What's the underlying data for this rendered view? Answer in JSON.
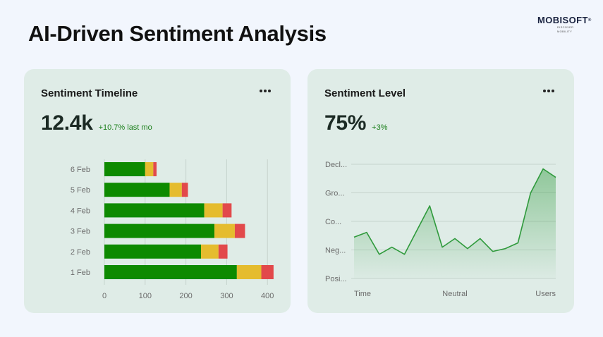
{
  "header": {
    "title": "AI-Driven Sentiment Analysis"
  },
  "logo": {
    "word": "MOBISOFT",
    "tagline": "DISCOVER MOBILITY",
    "reg": "®"
  },
  "colors": {
    "positive": "#0d8a00",
    "neutral": "#e5bc2e",
    "negative": "#e2494b",
    "line": "#2f9a3c",
    "card_bg": "#dfece7",
    "page_bg": "#f2f6fd"
  },
  "icons": {
    "more": "more-horizontal-icon"
  },
  "left_card": {
    "title": "Sentiment Timeline",
    "value": "12.4k",
    "change": "+10.7% last mo"
  },
  "right_card": {
    "title": "Sentiment Level",
    "value": "75%",
    "change": "+3%"
  },
  "chart_data": [
    {
      "type": "bar",
      "orientation": "horizontal",
      "stacked": true,
      "categories": [
        "6 Feb",
        "5 Feb",
        "4 Feb",
        "3 Feb",
        "2 Feb",
        "1 Feb"
      ],
      "series": [
        {
          "values": [
            100,
            160,
            245,
            270,
            237,
            325
          ],
          "color": "#0d8a00"
        },
        {
          "values": [
            20,
            30,
            45,
            50,
            43,
            60
          ],
          "color": "#e5bc2e"
        },
        {
          "values": [
            8,
            15,
            22,
            25,
            22,
            30
          ],
          "color": "#e2494b"
        }
      ],
      "x_ticks": [
        0,
        100,
        200,
        300,
        400
      ],
      "xlim": [
        -10,
        415
      ],
      "grid": "vertical"
    },
    {
      "type": "area",
      "y_categories": [
        "Decl...",
        "Gro...",
        "Co...",
        "Neg...",
        "Posi..."
      ],
      "x_labels": [
        "Time",
        "Neutral",
        "Users"
      ],
      "x": [
        0,
        1,
        2,
        3,
        4,
        5,
        6,
        7,
        8,
        9,
        10,
        11,
        12,
        13,
        14,
        15,
        16
      ],
      "values": [
        1.45,
        1.62,
        0.85,
        1.1,
        0.85,
        1.7,
        2.55,
        1.1,
        1.4,
        1.05,
        1.4,
        0.95,
        1.05,
        1.25,
        3.0,
        3.85,
        3.55
      ],
      "ylim": [
        0,
        5
      ],
      "color": "#2f9a3c",
      "grid": "horizontal"
    }
  ]
}
